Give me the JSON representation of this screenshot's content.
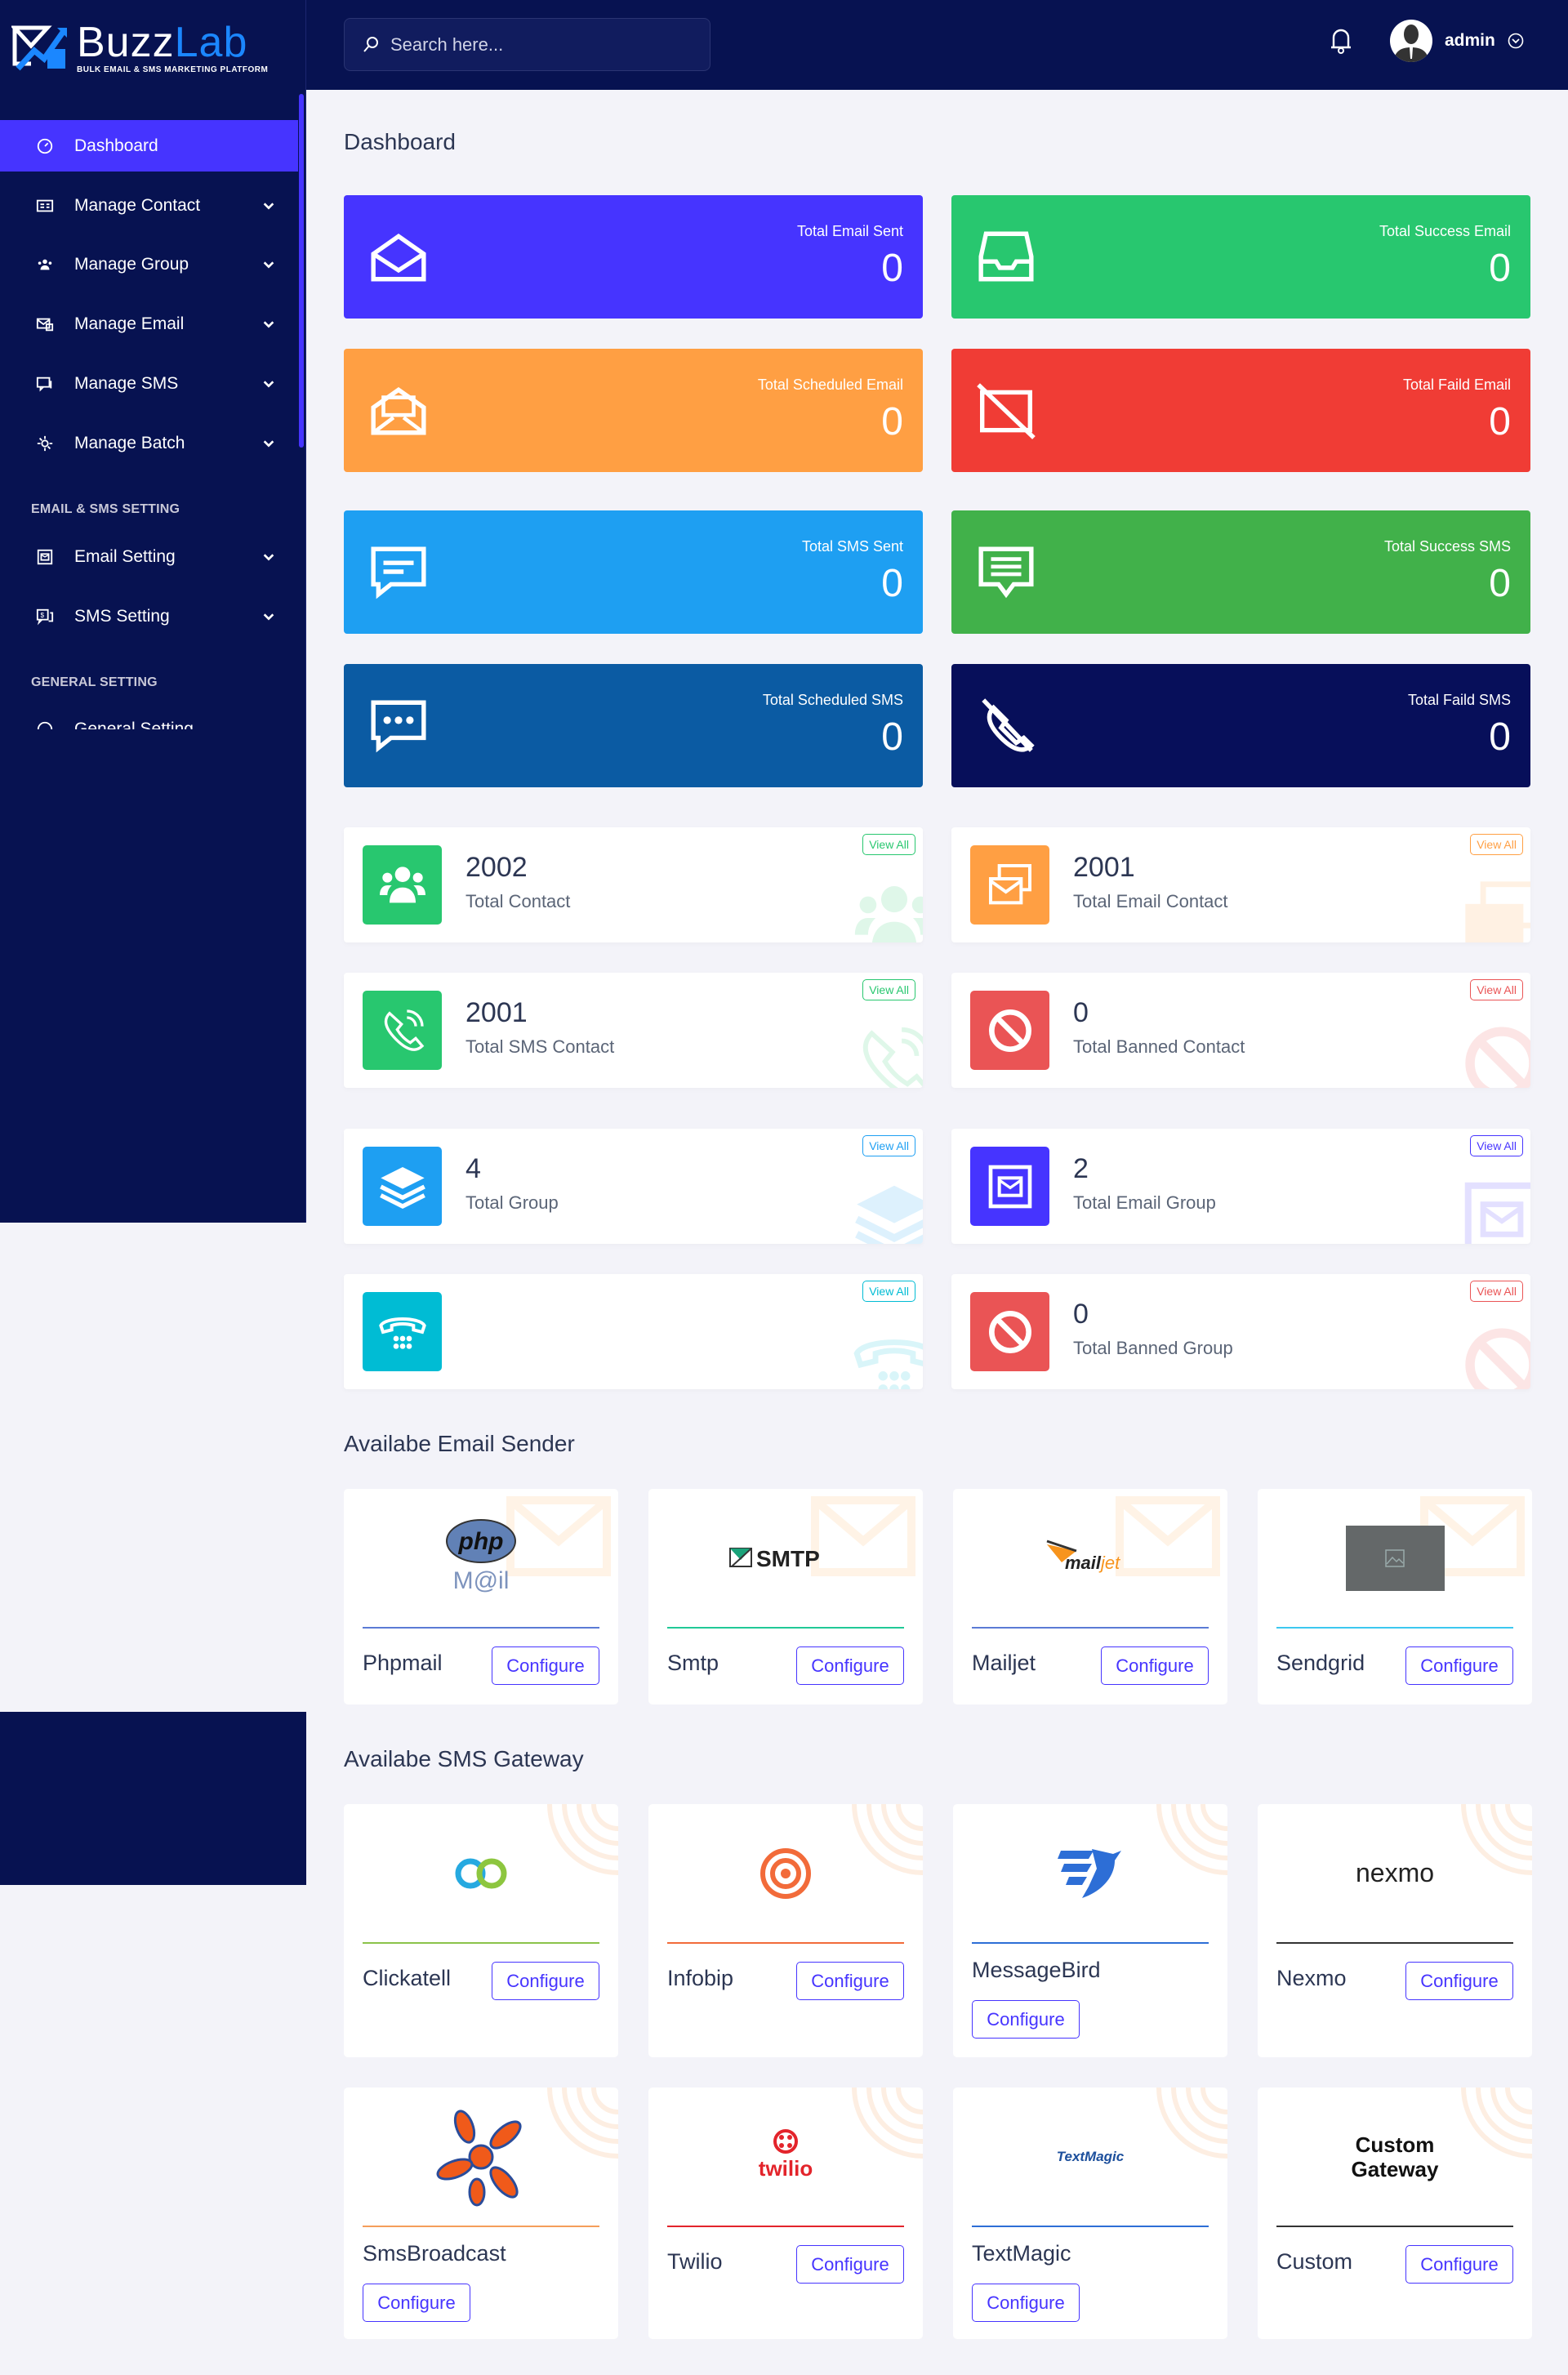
{
  "brand": {
    "name_a": "Buzz",
    "name_b": "Lab",
    "tagline": "BULK EMAIL & SMS MARKETING PLATFORM"
  },
  "header": {
    "search_placeholder": "Search here...",
    "user": "admin"
  },
  "sidebar": {
    "items": [
      {
        "label": "Dashboard",
        "icon": "dashboard-icon",
        "active": true
      },
      {
        "label": "Manage Contact",
        "icon": "contact-card-icon"
      },
      {
        "label": "Manage Group",
        "icon": "group-icon"
      },
      {
        "label": "Manage Email",
        "icon": "email-icon"
      },
      {
        "label": "Manage SMS",
        "icon": "sms-icon"
      },
      {
        "label": "Manage Batch",
        "icon": "batch-icon"
      }
    ],
    "section1": "EMAIL & SMS SETTING",
    "settings": [
      {
        "label": "Email Setting",
        "icon": "email-setting-icon"
      },
      {
        "label": "SMS Setting",
        "icon": "sms-setting-icon"
      }
    ],
    "section2": "GENERAL SETTING",
    "general": [
      {
        "label": "General Setting",
        "icon": "globe-icon"
      }
    ]
  },
  "page_title": "Dashboard",
  "stats": [
    {
      "label": "Total Email Sent",
      "value": "0",
      "color": "#4634ff",
      "icon": "envelope-open-icon"
    },
    {
      "label": "Total Success Email",
      "value": "0",
      "color": "#28c76f",
      "icon": "inbox-icon"
    },
    {
      "label": "Total Scheduled Email",
      "value": "0",
      "color": "#ff9f43",
      "icon": "envelope-letter-icon"
    },
    {
      "label": "Total Faild Email",
      "value": "0",
      "color": "#f03c35",
      "icon": "envelope-slash-icon"
    },
    {
      "label": "Total SMS Sent",
      "value": "0",
      "color": "#1e9ff2",
      "icon": "message-icon"
    },
    {
      "label": "Total Success SMS",
      "value": "0",
      "color": "#41b14a",
      "icon": "message-text-icon"
    },
    {
      "label": "Total Scheduled SMS",
      "value": "0",
      "color": "#0b5ba3",
      "icon": "message-dots-icon"
    },
    {
      "label": "Total Faild SMS",
      "value": "0",
      "color": "#070f5a",
      "icon": "phone-slash-icon"
    }
  ],
  "widgets": [
    {
      "value": "2002",
      "label": "Total Contact",
      "color": "#28c76f",
      "icon": "users-icon",
      "view": "View All"
    },
    {
      "value": "2001",
      "label": "Total Email Contact",
      "color": "#ff9f43",
      "icon": "email-contact-icon",
      "view": "View All"
    },
    {
      "value": "2001",
      "label": "Total SMS Contact",
      "color": "#28c76f",
      "icon": "phone-call-icon",
      "view": "View All"
    },
    {
      "value": "0",
      "label": "Total Banned Contact",
      "color": "#ea5455",
      "icon": "ban-icon",
      "view": "View All"
    },
    {
      "value": "4",
      "label": "Total Group",
      "color": "#1e9ff2",
      "icon": "layers-icon",
      "view": "View All"
    },
    {
      "value": "2",
      "label": "Total Email Group",
      "color": "#4634ff",
      "icon": "email-box-icon",
      "view": "View All"
    },
    {
      "value": "",
      "label": "",
      "color": "#00bcd4",
      "icon": "telephone-icon",
      "view": "View All"
    },
    {
      "value": "0",
      "label": "Total Banned Group",
      "color": "#ea5455",
      "icon": "ban-icon",
      "view": "View All"
    }
  ],
  "email_section_title": "Availabe Email Sender",
  "senders": [
    {
      "name": "Phpmail",
      "logo": "php M@il",
      "divider": "#5b7bd5",
      "button": "Configure"
    },
    {
      "name": "Smtp",
      "logo": "SMTP",
      "divider": "#20c997",
      "button": "Configure"
    },
    {
      "name": "Mailjet",
      "logo": "mailjet",
      "divider": "#5b7bd5",
      "button": "Configure"
    },
    {
      "name": "Sendgrid",
      "logo": "",
      "divider": "#3cc8f0",
      "button": "Configure"
    }
  ],
  "sms_section_title": "Availabe SMS Gateway",
  "gateways": [
    {
      "name": "Clickatell",
      "logo": "",
      "divider": "#8bc34a",
      "button": "Configure",
      "below": false
    },
    {
      "name": "Infobip",
      "logo": "",
      "divider": "#f26b3a",
      "button": "Configure",
      "below": false
    },
    {
      "name": "MessageBird",
      "logo": "",
      "divider": "#2d6ed6",
      "button": "Configure",
      "below": true
    },
    {
      "name": "Nexmo",
      "logo": "nexmo",
      "divider": "#333333",
      "button": "Configure",
      "below": false
    },
    {
      "name": "SmsBroadcast",
      "logo": "",
      "divider": "#f59e5b",
      "button": "Configure",
      "below": true
    },
    {
      "name": "Twilio",
      "logo": "twilio",
      "divider": "#e3242b",
      "button": "Configure",
      "below": false
    },
    {
      "name": "TextMagic",
      "logo": "TextMagic",
      "divider": "#2d6ed6",
      "button": "Configure",
      "below": true
    },
    {
      "name": "Custom",
      "logo": "Custom Gateway",
      "divider": "#333333",
      "button": "Configure",
      "below": false
    }
  ]
}
